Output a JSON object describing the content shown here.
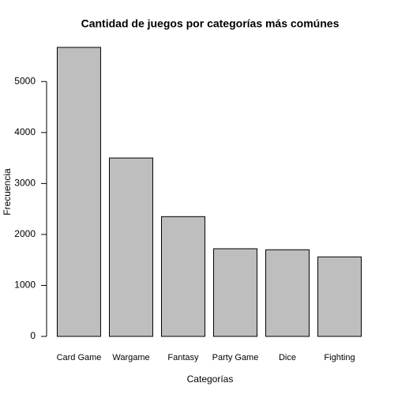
{
  "chart_data": {
    "type": "bar",
    "title": "Cantidad de juegos por categorías más comúnes",
    "xlabel": "Categorías",
    "ylabel": "Frecuencia",
    "categories": [
      "Card Game",
      "Wargame",
      "Fantasy",
      "Party Game",
      "Dice",
      "Fighting"
    ],
    "values": [
      5670,
      3500,
      2350,
      1720,
      1700,
      1560
    ],
    "color": "#bebebe",
    "ylim": [
      0,
      5670
    ],
    "yticks": [
      0,
      1000,
      2000,
      3000,
      4000,
      5000
    ]
  }
}
